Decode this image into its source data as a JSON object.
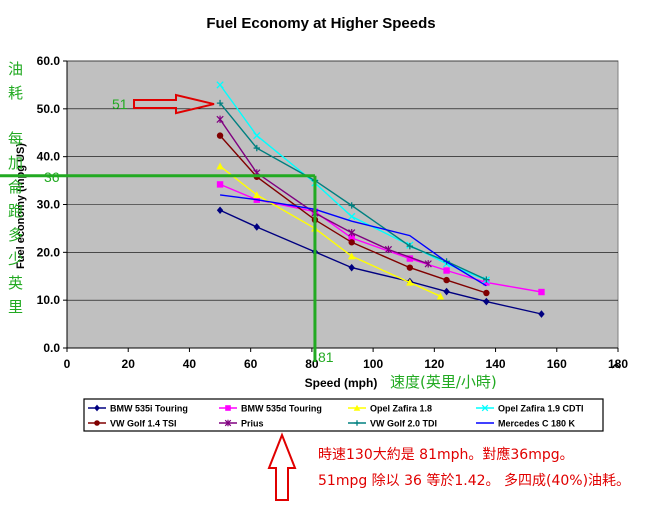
{
  "chart_data": {
    "type": "line",
    "title": "Fuel Economy at Higher Speeds",
    "xlabel": "Speed (mph)",
    "ylabel": "Fuel economy (mpg US)",
    "xlim": [
      0,
      180
    ],
    "ylim": [
      0,
      60
    ],
    "xticks": [
      0,
      20,
      40,
      60,
      80,
      100,
      120,
      140,
      160,
      180
    ],
    "yticks": [
      0.0,
      10.0,
      20.0,
      30.0,
      40.0,
      50.0,
      60.0
    ],
    "grid": true,
    "legend_placement": "bottom",
    "plot_background": "#c0c0c0",
    "series": [
      {
        "name": "BMW 535i Touring",
        "color": "#000080",
        "marker": "diamond",
        "x": [
          50,
          62,
          81,
          93,
          112,
          124,
          137,
          155
        ],
        "y": [
          28.8,
          25.3,
          20.1,
          16.8,
          13.9,
          11.8,
          9.7,
          7.1
        ]
      },
      {
        "name": "BMW 535d Touring",
        "color": "#ff00ff",
        "marker": "square",
        "x": [
          50,
          62,
          81,
          93,
          112,
          124,
          137,
          155
        ],
        "y": [
          34.2,
          31.0,
          28.5,
          23.0,
          18.7,
          16.2,
          13.7,
          11.7
        ]
      },
      {
        "name": "Opel Zafira 1.8",
        "color": "#ffff00",
        "marker": "triangle",
        "x": [
          50,
          62,
          81,
          93,
          112,
          122
        ],
        "y": [
          38.0,
          32.0,
          25.0,
          19.2,
          13.7,
          10.8
        ]
      },
      {
        "name": "Opel Zafira 1.9 CDTI",
        "color": "#00ffff",
        "marker": "x",
        "x": [
          50,
          62,
          81,
          93,
          112,
          124,
          137
        ],
        "y": [
          55.0,
          44.4,
          34.5,
          27.5,
          21.5,
          17.6,
          14.2
        ]
      },
      {
        "name": "VW Golf 1.4 TSI",
        "color": "#800000",
        "marker": "circle",
        "x": [
          50,
          62,
          81,
          93,
          112,
          124,
          137
        ],
        "y": [
          44.4,
          35.8,
          26.8,
          22.1,
          16.8,
          14.2,
          11.5
        ]
      },
      {
        "name": "Prius",
        "color": "#800080",
        "marker": "star",
        "x": [
          50,
          62,
          81,
          93,
          105,
          118
        ],
        "y": [
          47.8,
          36.6,
          28.2,
          24.1,
          20.6,
          17.6
        ]
      },
      {
        "name": "VW Golf 2.0 TDI",
        "color": "#008080",
        "marker": "plus",
        "x": [
          50,
          62,
          81,
          93,
          112,
          124,
          137
        ],
        "y": [
          51.2,
          41.8,
          35.0,
          29.8,
          21.3,
          18.1,
          14.3
        ]
      },
      {
        "name": "Mercedes C 180 K",
        "color": "#0000ff",
        "marker": "none",
        "x": [
          50,
          62,
          81,
          93,
          112,
          124,
          137
        ],
        "y": [
          32.0,
          31.0,
          29.0,
          26.5,
          23.5,
          18.0,
          13.0
        ]
      }
    ]
  },
  "annotations": {
    "left_vertical_label": [
      "油",
      "耗",
      "",
      "每",
      "加",
      "侖",
      "跑",
      "多",
      "少",
      "英",
      "里"
    ],
    "label_51": "51",
    "label_36": "36",
    "label_81": "81",
    "x_axis_chinese": "速度(英里/小時)",
    "note_line1": "時速130大約是 81mph。對應36mpg。",
    "note_line2": "51mpg 除以 36  等於1.42。 多四成(40%)油耗。",
    "highlight_speed": 81,
    "highlight_mpg": 36,
    "highlight_peak_mpg": 51,
    "green": "#22aa22",
    "red": "#e00000"
  }
}
